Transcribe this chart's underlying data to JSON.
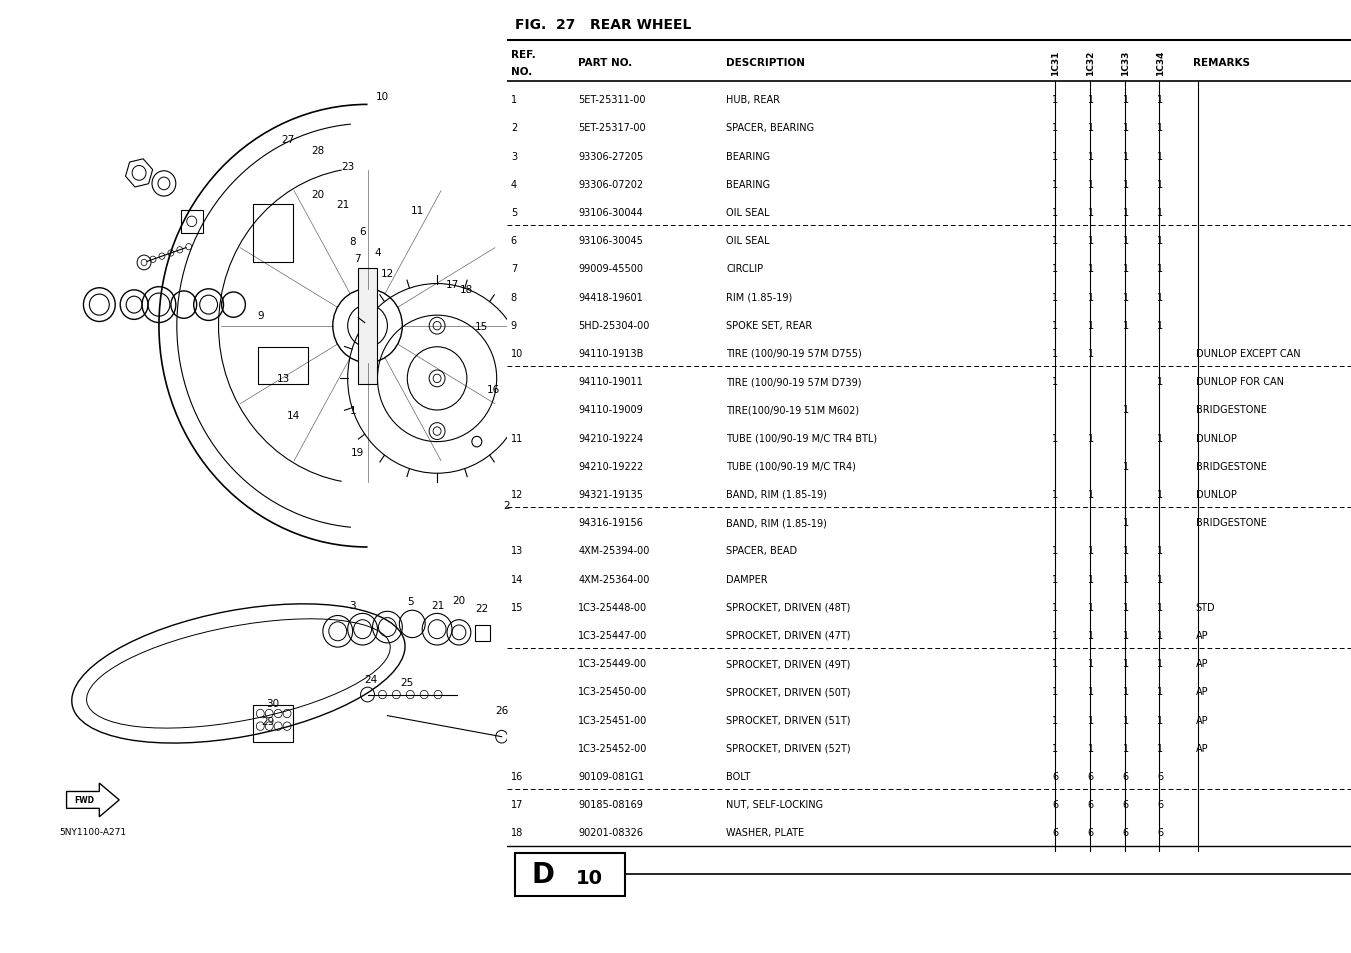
{
  "title": "FIG.  27   REAR WHEEL",
  "bg_color": "#ffffff",
  "rows": [
    {
      "ref": "1",
      "part": "5ET-25311-00",
      "desc": "HUB, REAR",
      "c31": "1",
      "c32": "1",
      "c33": "1",
      "c34": "1",
      "remarks": "",
      "dashed": false
    },
    {
      "ref": "2",
      "part": "5ET-25317-00",
      "desc": "SPACER, BEARING",
      "c31": "1",
      "c32": "1",
      "c33": "1",
      "c34": "1",
      "remarks": "",
      "dashed": false
    },
    {
      "ref": "3",
      "part": "93306-27205",
      "desc": "BEARING",
      "c31": "1",
      "c32": "1",
      "c33": "1",
      "c34": "1",
      "remarks": "",
      "dashed": false
    },
    {
      "ref": "4",
      "part": "93306-07202",
      "desc": "BEARING",
      "c31": "1",
      "c32": "1",
      "c33": "1",
      "c34": "1",
      "remarks": "",
      "dashed": false
    },
    {
      "ref": "5",
      "part": "93106-30044",
      "desc": "OIL SEAL",
      "c31": "1",
      "c32": "1",
      "c33": "1",
      "c34": "1",
      "remarks": "",
      "dashed": false
    },
    {
      "ref": "6",
      "part": "93106-30045",
      "desc": "OIL SEAL",
      "c31": "1",
      "c32": "1",
      "c33": "1",
      "c34": "1",
      "remarks": "",
      "dashed": true
    },
    {
      "ref": "7",
      "part": "99009-45500",
      "desc": "CIRCLIP",
      "c31": "1",
      "c32": "1",
      "c33": "1",
      "c34": "1",
      "remarks": "",
      "dashed": false
    },
    {
      "ref": "8",
      "part": "94418-19601",
      "desc": "RIM (1.85-19)",
      "c31": "1",
      "c32": "1",
      "c33": "1",
      "c34": "1",
      "remarks": "",
      "dashed": false
    },
    {
      "ref": "9",
      "part": "5HD-25304-00",
      "desc": "SPOKE SET, REAR",
      "c31": "1",
      "c32": "1",
      "c33": "1",
      "c34": "1",
      "remarks": "",
      "dashed": false
    },
    {
      "ref": "10",
      "part": "94110-1913B",
      "desc": "TIRE (100/90-19 57M D755)",
      "c31": "1",
      "c32": "1",
      "c33": "",
      "c34": "",
      "remarks": "DUNLOP EXCEPT CAN",
      "dashed": false
    },
    {
      "ref": "",
      "part": "94110-19011",
      "desc": "TIRE (100/90-19 57M D739)",
      "c31": "1",
      "c32": "",
      "c33": "",
      "c34": "1",
      "remarks": "DUNLOP FOR CAN",
      "dashed": true
    },
    {
      "ref": "",
      "part": "94110-19009",
      "desc": "TIRE(100/90-19 51M M602)",
      "c31": "",
      "c32": "",
      "c33": "1",
      "c34": "",
      "remarks": "BRIDGESTONE",
      "dashed": false
    },
    {
      "ref": "11",
      "part": "94210-19224",
      "desc": "TUBE (100/90-19 M/C TR4 BTL)",
      "c31": "1",
      "c32": "1",
      "c33": "",
      "c34": "1",
      "remarks": "DUNLOP",
      "dashed": false
    },
    {
      "ref": "",
      "part": "94210-19222",
      "desc": "TUBE (100/90-19 M/C TR4)",
      "c31": "",
      "c32": "",
      "c33": "1",
      "c34": "",
      "remarks": "BRIDGESTONE",
      "dashed": false
    },
    {
      "ref": "12",
      "part": "94321-19135",
      "desc": "BAND, RIM (1.85-19)",
      "c31": "1",
      "c32": "1",
      "c33": "",
      "c34": "1",
      "remarks": "DUNLOP",
      "dashed": false
    },
    {
      "ref": "",
      "part": "94316-19156",
      "desc": "BAND, RIM (1.85-19)",
      "c31": "",
      "c32": "",
      "c33": "1",
      "c34": "",
      "remarks": "BRIDGESTONE",
      "dashed": true
    },
    {
      "ref": "13",
      "part": "4XM-25394-00",
      "desc": "SPACER, BEAD",
      "c31": "1",
      "c32": "1",
      "c33": "1",
      "c34": "1",
      "remarks": "",
      "dashed": false
    },
    {
      "ref": "14",
      "part": "4XM-25364-00",
      "desc": "DAMPER",
      "c31": "1",
      "c32": "1",
      "c33": "1",
      "c34": "1",
      "remarks": "",
      "dashed": false
    },
    {
      "ref": "15",
      "part": "1C3-25448-00",
      "desc": "SPROCKET, DRIVEN (48T)",
      "c31": "1",
      "c32": "1",
      "c33": "1",
      "c34": "1",
      "remarks": "STD",
      "dashed": false
    },
    {
      "ref": "",
      "part": "1C3-25447-00",
      "desc": "SPROCKET, DRIVEN (47T)",
      "c31": "1",
      "c32": "1",
      "c33": "1",
      "c34": "1",
      "remarks": "AP",
      "dashed": false
    },
    {
      "ref": "",
      "part": "1C3-25449-00",
      "desc": "SPROCKET, DRIVEN (49T)",
      "c31": "1",
      "c32": "1",
      "c33": "1",
      "c34": "1",
      "remarks": "AP",
      "dashed": true
    },
    {
      "ref": "",
      "part": "1C3-25450-00",
      "desc": "SPROCKET, DRIVEN (50T)",
      "c31": "1",
      "c32": "1",
      "c33": "1",
      "c34": "1",
      "remarks": "AP",
      "dashed": false
    },
    {
      "ref": "",
      "part": "1C3-25451-00",
      "desc": "SPROCKET, DRIVEN (51T)",
      "c31": "1",
      "c32": "1",
      "c33": "1",
      "c34": "1",
      "remarks": "AP",
      "dashed": false
    },
    {
      "ref": "",
      "part": "1C3-25452-00",
      "desc": "SPROCKET, DRIVEN (52T)",
      "c31": "1",
      "c32": "1",
      "c33": "1",
      "c34": "1",
      "remarks": "AP",
      "dashed": false
    },
    {
      "ref": "16",
      "part": "90109-081G1",
      "desc": "BOLT",
      "c31": "6",
      "c32": "6",
      "c33": "6",
      "c34": "6",
      "remarks": "",
      "dashed": false
    },
    {
      "ref": "17",
      "part": "90185-08169",
      "desc": "NUT, SELF-LOCKING",
      "c31": "6",
      "c32": "6",
      "c33": "6",
      "c34": "6",
      "remarks": "",
      "dashed": true
    },
    {
      "ref": "18",
      "part": "90201-08326",
      "desc": "WASHER, PLATE",
      "c31": "6",
      "c32": "6",
      "c33": "6",
      "c34": "6",
      "remarks": "",
      "dashed": false
    }
  ]
}
